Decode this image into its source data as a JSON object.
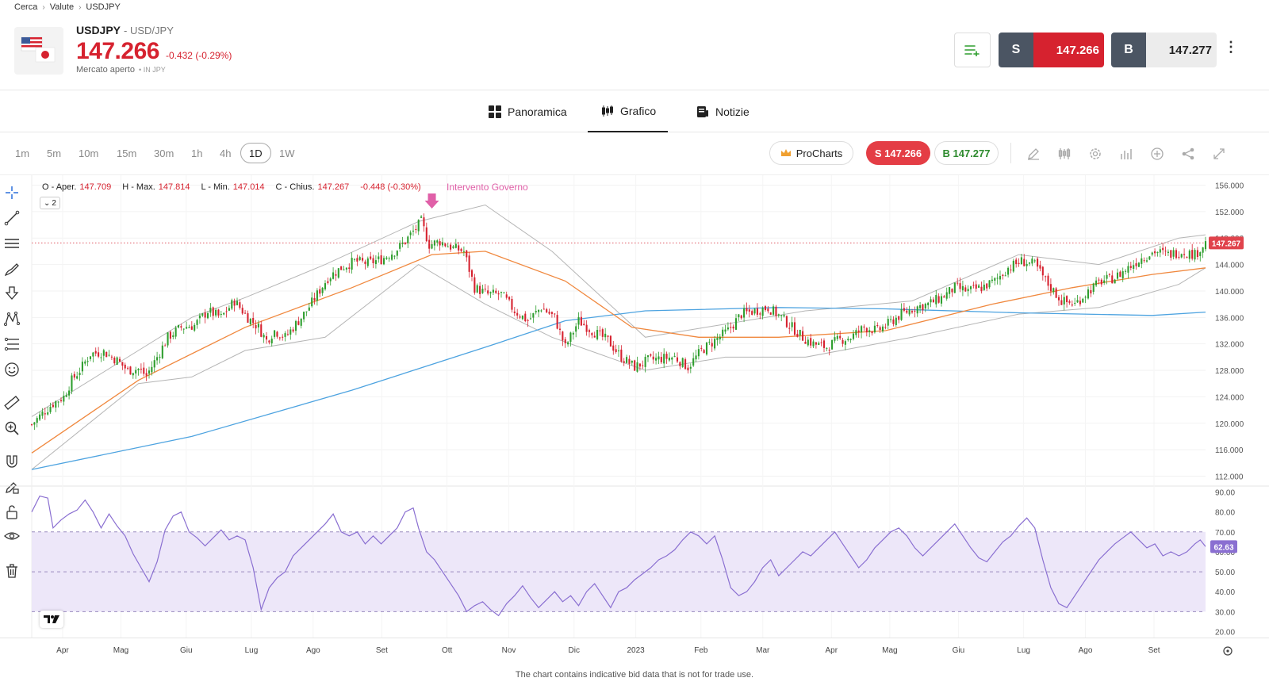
{
  "breadcrumb": {
    "item1": "Cerca",
    "item2": "Valute",
    "item3": "USDJPY"
  },
  "instrument": {
    "symbol": "USDJPY",
    "name": "- USD/JPY",
    "price": "147.266",
    "change": "-0.432 (-0.29%)",
    "status": "Mercato aperto",
    "currency": "• IN JPY",
    "flag_icon": "usd-jpy-flag-icon"
  },
  "trade": {
    "sell_label": "S",
    "sell_price": "147.266",
    "buy_label": "B",
    "buy_price": "147.277"
  },
  "tabs": [
    {
      "label": "Panoramica",
      "icon": "grid-icon"
    },
    {
      "label": "Grafico",
      "icon": "candles-icon",
      "active": true
    },
    {
      "label": "Notizie",
      "icon": "news-icon"
    }
  ],
  "timeframes": [
    "1m",
    "5m",
    "10m",
    "15m",
    "30m",
    "1h",
    "4h",
    "1D",
    "1W"
  ],
  "timeframe_active": "1D",
  "chart_toolbar": {
    "prochart_label": "ProCharts",
    "sell_pill": "S 147.266",
    "buy_pill": "B 147.277",
    "icons": [
      "pencil-icon",
      "indicators-icon",
      "settings-icon",
      "bar-chart-icon",
      "add-icon",
      "share-icon",
      "expand-icon"
    ]
  },
  "ohlc": {
    "o_label": "O - Aper.",
    "o": "147.709",
    "h_label": "H - Max.",
    "h": "147.814",
    "l_label": "L - Min.",
    "l": "147.014",
    "c_label": "C - Chius.",
    "c": "147.267",
    "chg": "-0.448 (-0.30%)"
  },
  "legend_toggle": "2",
  "annotation": "Intervento Governo",
  "disclaimer": "The chart contains indicative bid data that is not for trade use.",
  "colors": {
    "up": "#2e9e2e",
    "down": "#d6222f",
    "sma_slow": "#4da3e0",
    "sma_fast": "#f0883e",
    "bollinger": "#b5b5b5",
    "rsi": "#8a6fd1",
    "rsi_band": "#ede7f9",
    "annotation": "#e060a8"
  },
  "chart_data": [
    {
      "type": "candlestick",
      "price_axis": [
        "156.000",
        "152.000",
        "148.000",
        "144.000",
        "140.000",
        "136.000",
        "132.000",
        "128.000",
        "124.000",
        "120.000",
        "116.000",
        "112.000"
      ],
      "ylim": [
        110.5,
        157.5
      ],
      "last_price_label": "147.267",
      "last_price": 147.267,
      "x_labels": [
        "Apr",
        "Mag",
        "Giu",
        "Lug",
        "Ago",
        "Set",
        "Ott",
        "Nov",
        "Dic",
        "2023",
        "Feb",
        "Mar",
        "Apr",
        "Mag",
        "Giu",
        "Lug",
        "Ago",
        "Set"
      ],
      "close_path": [
        [
          0,
          119.8
        ],
        [
          4,
          121.5
        ],
        [
          8,
          123.0
        ],
        [
          12,
          124.0
        ],
        [
          15,
          126.5
        ],
        [
          18,
          128.0
        ],
        [
          22,
          130.5
        ],
        [
          27,
          130.8
        ],
        [
          32,
          129.5
        ],
        [
          36,
          128.0
        ],
        [
          40,
          128.2
        ],
        [
          43,
          127.2
        ],
        [
          47,
          130.0
        ],
        [
          51,
          133.0
        ],
        [
          56,
          134.5
        ],
        [
          61,
          134.8
        ],
        [
          66,
          137.0
        ],
        [
          71,
          136.0
        ],
        [
          76,
          138.5
        ],
        [
          81,
          136.0
        ],
        [
          85,
          134.5
        ],
        [
          88,
          132.5
        ],
        [
          91,
          134.0
        ],
        [
          95,
          133.0
        ],
        [
          99,
          135.0
        ],
        [
          103,
          137.0
        ],
        [
          107,
          139.5
        ],
        [
          111,
          142.0
        ],
        [
          116,
          143.5
        ],
        [
          121,
          144.5
        ],
        [
          126,
          144.2
        ],
        [
          131,
          144.8
        ],
        [
          136,
          146.0
        ],
        [
          140,
          147.5
        ],
        [
          143,
          149.0
        ],
        [
          146,
          150.5
        ],
        [
          149,
          147.0
        ],
        [
          153,
          147.5
        ],
        [
          158,
          146.5
        ],
        [
          162,
          146.0
        ],
        [
          166,
          140.5
        ],
        [
          171,
          139.5
        ],
        [
          176,
          139.5
        ],
        [
          181,
          137.0
        ],
        [
          186,
          135.5
        ],
        [
          191,
          137.5
        ],
        [
          196,
          136.0
        ],
        [
          200,
          131.5
        ],
        [
          205,
          135.5
        ],
        [
          210,
          134.0
        ],
        [
          216,
          132.5
        ],
        [
          221,
          130.0
        ],
        [
          226,
          128.5
        ],
        [
          231,
          129.5
        ],
        [
          236,
          129.8
        ],
        [
          241,
          130.0
        ],
        [
          246,
          128.5
        ],
        [
          251,
          131.0
        ],
        [
          256,
          132.5
        ],
        [
          261,
          134.0
        ],
        [
          266,
          136.5
        ],
        [
          271,
          137.0
        ],
        [
          276,
          137.5
        ],
        [
          281,
          136.0
        ],
        [
          285,
          134.5
        ],
        [
          289,
          133.0
        ],
        [
          293,
          132.0
        ],
        [
          298,
          131.5
        ],
        [
          302,
          132.5
        ],
        [
          307,
          133.0
        ],
        [
          312,
          134.5
        ],
        [
          317,
          134.0
        ],
        [
          321,
          135.0
        ],
        [
          326,
          136.5
        ],
        [
          331,
          137.5
        ],
        [
          336,
          138.0
        ],
        [
          341,
          139.0
        ],
        [
          346,
          140.5
        ],
        [
          351,
          140.0
        ],
        [
          356,
          140.5
        ],
        [
          361,
          141.5
        ],
        [
          366,
          143.5
        ],
        [
          371,
          144.5
        ],
        [
          376,
          144.0
        ],
        [
          381,
          141.0
        ],
        [
          386,
          138.5
        ],
        [
          391,
          138.0
        ],
        [
          396,
          140.0
        ],
        [
          401,
          141.5
        ],
        [
          406,
          142.0
        ],
        [
          411,
          143.5
        ],
        [
          416,
          145.0
        ],
        [
          421,
          146.0
        ],
        [
          426,
          145.5
        ],
        [
          431,
          146.0
        ],
        [
          436,
          145.5
        ],
        [
          440,
          147.267
        ]
      ],
      "bollinger_upper": [
        [
          0,
          121
        ],
        [
          40,
          131
        ],
        [
          60,
          136
        ],
        [
          80,
          139
        ],
        [
          110,
          144
        ],
        [
          145,
          150.5
        ],
        [
          170,
          153
        ],
        [
          195,
          146
        ],
        [
          230,
          133
        ],
        [
          260,
          135
        ],
        [
          290,
          137
        ],
        [
          330,
          138.5
        ],
        [
          370,
          145.5
        ],
        [
          400,
          144
        ],
        [
          430,
          148
        ],
        [
          440,
          148.5
        ]
      ],
      "bollinger_lower": [
        [
          0,
          113
        ],
        [
          40,
          126
        ],
        [
          60,
          127
        ],
        [
          80,
          131
        ],
        [
          110,
          133
        ],
        [
          145,
          144
        ],
        [
          170,
          138
        ],
        [
          195,
          133
        ],
        [
          230,
          128
        ],
        [
          260,
          130
        ],
        [
          290,
          130
        ],
        [
          330,
          133
        ],
        [
          370,
          136.5
        ],
        [
          400,
          137.5
        ],
        [
          430,
          141
        ],
        [
          440,
          143.5
        ]
      ],
      "sma_fast": [
        [
          0,
          115.5
        ],
        [
          40,
          126.5
        ],
        [
          80,
          134.5
        ],
        [
          120,
          140.5
        ],
        [
          150,
          145.5
        ],
        [
          170,
          146.0
        ],
        [
          200,
          141.5
        ],
        [
          225,
          134.5
        ],
        [
          250,
          133.0
        ],
        [
          280,
          133.0
        ],
        [
          320,
          134.0
        ],
        [
          360,
          138.0
        ],
        [
          390,
          140.5
        ],
        [
          420,
          142.5
        ],
        [
          440,
          143.5
        ]
      ],
      "sma_slow": [
        [
          0,
          113.0
        ],
        [
          60,
          118.0
        ],
        [
          120,
          125.0
        ],
        [
          170,
          131.5
        ],
        [
          200,
          135.5
        ],
        [
          230,
          137.0
        ],
        [
          280,
          137.5
        ],
        [
          320,
          137.3
        ],
        [
          370,
          136.7
        ],
        [
          420,
          136.3
        ],
        [
          440,
          136.8
        ]
      ],
      "annotation_x": 150
    },
    {
      "type": "line",
      "name": "RSI",
      "y_axis": [
        "90.00",
        "80.00",
        "70.00",
        "60.00",
        "50.00",
        "40.00",
        "30.00",
        "20.00"
      ],
      "ylim": [
        17,
        93
      ],
      "bands": [
        30,
        50,
        70
      ],
      "last_value_label": "62.63",
      "last_value": 62.63,
      "series": [
        [
          0,
          80
        ],
        [
          3,
          88
        ],
        [
          6,
          87
        ],
        [
          8,
          72
        ],
        [
          11,
          76
        ],
        [
          14,
          79
        ],
        [
          17,
          81
        ],
        [
          20,
          86
        ],
        [
          23,
          80
        ],
        [
          26,
          72
        ],
        [
          29,
          79
        ],
        [
          32,
          73
        ],
        [
          35,
          68
        ],
        [
          38,
          59
        ],
        [
          41,
          52
        ],
        [
          44,
          45
        ],
        [
          47,
          55
        ],
        [
          50,
          71
        ],
        [
          53,
          78
        ],
        [
          56,
          80
        ],
        [
          59,
          70
        ],
        [
          62,
          67
        ],
        [
          65,
          63
        ],
        [
          68,
          67
        ],
        [
          71,
          71
        ],
        [
          74,
          66
        ],
        [
          77,
          68
        ],
        [
          80,
          66
        ],
        [
          83,
          52
        ],
        [
          86,
          31
        ],
        [
          89,
          42
        ],
        [
          92,
          47
        ],
        [
          95,
          50
        ],
        [
          98,
          58
        ],
        [
          101,
          62
        ],
        [
          104,
          66
        ],
        [
          107,
          70
        ],
        [
          110,
          74
        ],
        [
          113,
          79
        ],
        [
          116,
          70
        ],
        [
          119,
          68
        ],
        [
          122,
          70
        ],
        [
          125,
          64
        ],
        [
          128,
          68
        ],
        [
          131,
          64
        ],
        [
          134,
          68
        ],
        [
          137,
          72
        ],
        [
          140,
          80
        ],
        [
          143,
          82
        ],
        [
          145,
          72
        ],
        [
          148,
          60
        ],
        [
          151,
          56
        ],
        [
          154,
          50
        ],
        [
          157,
          44
        ],
        [
          160,
          38
        ],
        [
          163,
          30
        ],
        [
          166,
          33
        ],
        [
          169,
          35
        ],
        [
          172,
          31
        ],
        [
          175,
          28
        ],
        [
          178,
          34
        ],
        [
          181,
          38
        ],
        [
          184,
          43
        ],
        [
          187,
          37
        ],
        [
          190,
          32
        ],
        [
          193,
          36
        ],
        [
          196,
          40
        ],
        [
          199,
          35
        ],
        [
          202,
          38
        ],
        [
          205,
          33
        ],
        [
          208,
          40
        ],
        [
          211,
          44
        ],
        [
          214,
          38
        ],
        [
          217,
          32
        ],
        [
          220,
          40
        ],
        [
          223,
          42
        ],
        [
          226,
          46
        ],
        [
          229,
          49
        ],
        [
          232,
          52
        ],
        [
          235,
          56
        ],
        [
          238,
          58
        ],
        [
          241,
          61
        ],
        [
          244,
          66
        ],
        [
          247,
          70
        ],
        [
          250,
          68
        ],
        [
          253,
          64
        ],
        [
          256,
          68
        ],
        [
          259,
          56
        ],
        [
          262,
          42
        ],
        [
          265,
          38
        ],
        [
          268,
          40
        ],
        [
          271,
          45
        ],
        [
          274,
          52
        ],
        [
          277,
          56
        ],
        [
          280,
          48
        ],
        [
          283,
          52
        ],
        [
          286,
          56
        ],
        [
          289,
          60
        ],
        [
          292,
          58
        ],
        [
          295,
          62
        ],
        [
          298,
          66
        ],
        [
          301,
          70
        ],
        [
          304,
          64
        ],
        [
          307,
          58
        ],
        [
          310,
          52
        ],
        [
          313,
          56
        ],
        [
          316,
          62
        ],
        [
          319,
          66
        ],
        [
          322,
          70
        ],
        [
          325,
          72
        ],
        [
          328,
          68
        ],
        [
          331,
          62
        ],
        [
          334,
          58
        ],
        [
          337,
          62
        ],
        [
          340,
          66
        ],
        [
          343,
          70
        ],
        [
          346,
          74
        ],
        [
          349,
          68
        ],
        [
          352,
          62
        ],
        [
          355,
          57
        ],
        [
          358,
          55
        ],
        [
          361,
          60
        ],
        [
          364,
          65
        ],
        [
          367,
          68
        ],
        [
          370,
          73
        ],
        [
          373,
          77
        ],
        [
          376,
          72
        ],
        [
          379,
          56
        ],
        [
          382,
          42
        ],
        [
          385,
          34
        ],
        [
          388,
          32
        ],
        [
          391,
          38
        ],
        [
          394,
          44
        ],
        [
          397,
          50
        ],
        [
          400,
          56
        ],
        [
          403,
          60
        ],
        [
          406,
          64
        ],
        [
          409,
          67
        ],
        [
          412,
          70
        ],
        [
          415,
          66
        ],
        [
          418,
          62
        ],
        [
          421,
          64
        ],
        [
          424,
          58
        ],
        [
          427,
          60
        ],
        [
          430,
          58
        ],
        [
          433,
          60
        ],
        [
          436,
          64
        ],
        [
          438,
          66
        ],
        [
          440,
          62.63
        ]
      ]
    }
  ]
}
